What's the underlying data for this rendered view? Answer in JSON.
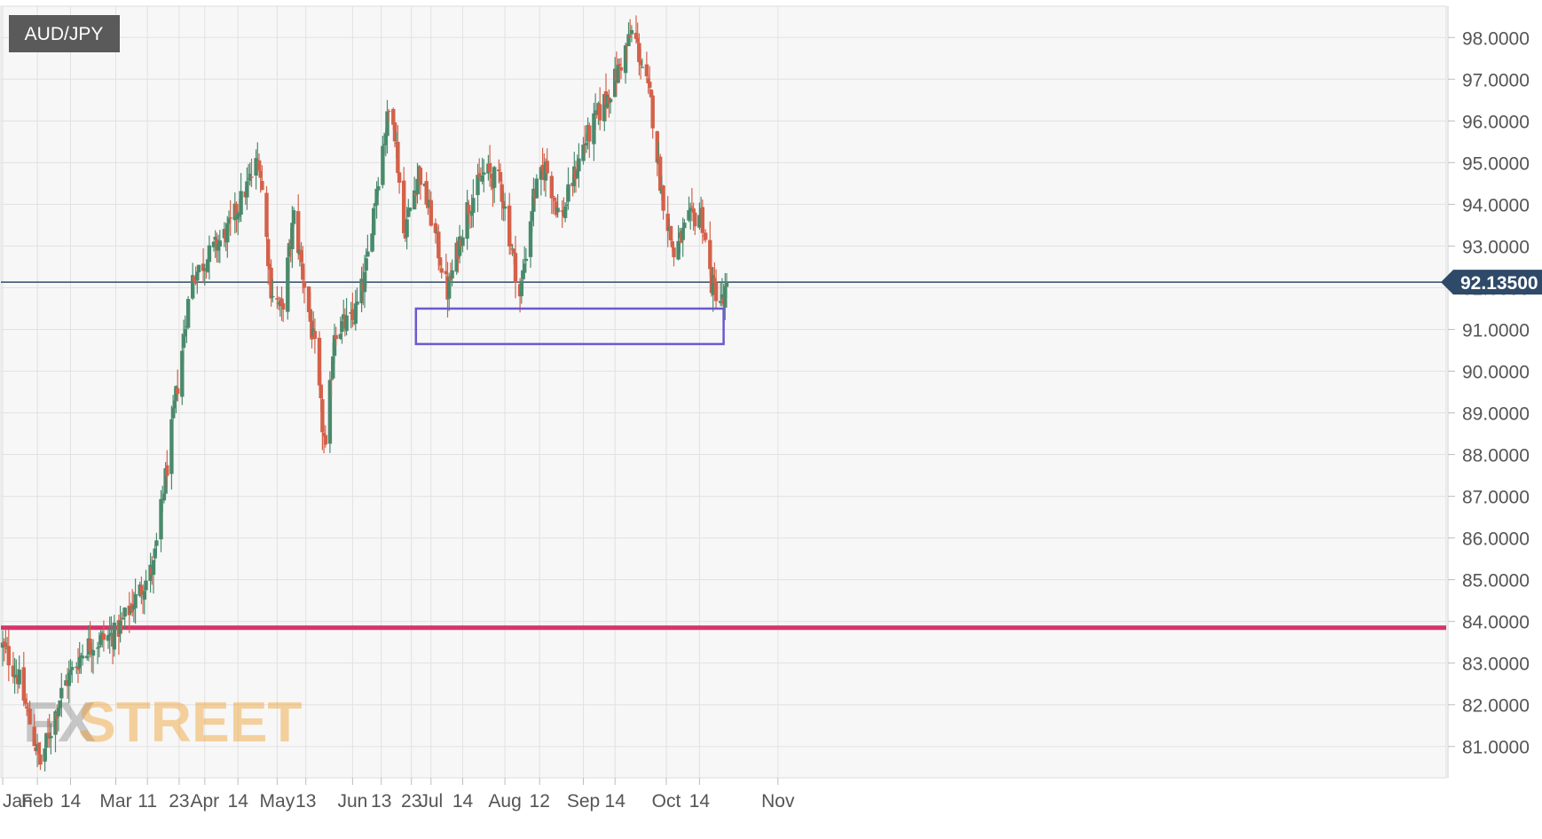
{
  "chart_data": {
    "type": "candlestick",
    "title": "AUD/JPY",
    "current_price": "92.13500",
    "colors": {
      "up": "#4a8a6c",
      "down": "#d4614a",
      "support_line": "#d6336c",
      "current_line": "#2f4a68",
      "current_badge": "#2f4a68",
      "zone": "#6a5acd",
      "grid": "#e2e2e2",
      "plot_bg": "#f7f7f7",
      "instrument_badge": "#5a5a5a"
    },
    "y_axis": {
      "min": 80.25,
      "max": 98.75,
      "ticks": [
        "81.0000",
        "82.0000",
        "83.0000",
        "84.0000",
        "85.0000",
        "86.0000",
        "87.0000",
        "88.0000",
        "89.0000",
        "90.0000",
        "91.0000",
        "92.0000",
        "93.0000",
        "94.0000",
        "95.0000",
        "96.0000",
        "97.0000",
        "98.0000"
      ],
      "tick_values": [
        81,
        82,
        83,
        84,
        85,
        86,
        87,
        88,
        89,
        90,
        91,
        92,
        93,
        94,
        95,
        96,
        97,
        98
      ]
    },
    "x_axis": {
      "labels": [
        "Jan",
        "Feb",
        "14",
        "Mar",
        "11",
        "23",
        "Apr",
        "14",
        "May",
        "13",
        "Jun",
        "13",
        "23",
        "Jul",
        "14",
        "Aug",
        "12",
        "Sep",
        "14",
        "Oct",
        "14",
        "Nov"
      ],
      "label_index": [
        0,
        23,
        45,
        75,
        96,
        117,
        134,
        156,
        182,
        201,
        232,
        251,
        271,
        284,
        305,
        333,
        356,
        385,
        406,
        440,
        462,
        514
      ]
    },
    "horizontal_lines": [
      {
        "name": "support",
        "value": 83.85
      },
      {
        "name": "current",
        "value": 92.135
      }
    ],
    "zone": {
      "x_start": 274,
      "x_end": 478,
      "y_low": 90.65,
      "y_high": 91.5
    },
    "keypoints": [
      [
        0,
        83.4
      ],
      [
        10,
        82.7
      ],
      [
        25,
        80.6
      ],
      [
        40,
        82.4
      ],
      [
        55,
        83.4
      ],
      [
        75,
        83.7
      ],
      [
        100,
        85.3
      ],
      [
        110,
        88.0
      ],
      [
        125,
        92.2
      ],
      [
        150,
        93.4
      ],
      [
        170,
        95.1
      ],
      [
        178,
        92.0
      ],
      [
        185,
        91.4
      ],
      [
        193,
        93.7
      ],
      [
        207,
        90.5
      ],
      [
        214,
        88.0
      ],
      [
        220,
        91.0
      ],
      [
        232,
        91.2
      ],
      [
        240,
        92.2
      ],
      [
        250,
        95.0
      ],
      [
        258,
        96.6
      ],
      [
        266,
        93.3
      ],
      [
        276,
        94.8
      ],
      [
        284,
        93.7
      ],
      [
        295,
        91.9
      ],
      [
        308,
        93.9
      ],
      [
        320,
        94.8
      ],
      [
        330,
        94.5
      ],
      [
        343,
        91.8
      ],
      [
        352,
        94.2
      ],
      [
        360,
        94.9
      ],
      [
        370,
        93.6
      ],
      [
        385,
        95.4
      ],
      [
        405,
        96.9
      ],
      [
        418,
        98.2
      ],
      [
        430,
        96.4
      ],
      [
        437,
        94.3
      ],
      [
        445,
        92.8
      ],
      [
        455,
        93.6
      ],
      [
        463,
        93.8
      ],
      [
        470,
        92.1
      ],
      [
        478,
        91.6
      ],
      [
        480,
        92.13
      ]
    ]
  },
  "branding": {
    "logo_fx": "FX",
    "logo_street": "STREET"
  }
}
